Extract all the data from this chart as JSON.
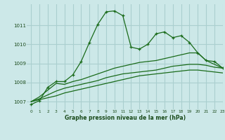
{
  "title": "Graphe pression niveau de la mer (hPa)",
  "bg_color": "#cce8e8",
  "grid_color": "#aacfcf",
  "line_color": "#1a6b1a",
  "xlim": [
    -0.5,
    23
  ],
  "ylim": [
    1006.6,
    1012.1
  ],
  "yticks": [
    1007,
    1008,
    1009,
    1010,
    1011
  ],
  "xticks": [
    0,
    1,
    2,
    3,
    4,
    5,
    6,
    7,
    8,
    9,
    10,
    11,
    12,
    13,
    14,
    15,
    16,
    17,
    18,
    19,
    20,
    21,
    22,
    23
  ],
  "series1_x": [
    0,
    1,
    2,
    3,
    4,
    5,
    6,
    7,
    8,
    9,
    10,
    11,
    12,
    13,
    14,
    15,
    16,
    17,
    18,
    19,
    20,
    21,
    22,
    23
  ],
  "series1_y": [
    1006.85,
    1007.05,
    1007.75,
    1008.05,
    1008.05,
    1008.4,
    1009.1,
    1010.1,
    1011.05,
    1011.7,
    1011.75,
    1011.5,
    1009.85,
    1009.75,
    1010.0,
    1010.55,
    1010.65,
    1010.35,
    1010.45,
    1010.1,
    1009.55,
    1009.15,
    1009.1,
    1008.75
  ],
  "series2_x": [
    0,
    1,
    2,
    3,
    4,
    5,
    6,
    7,
    8,
    9,
    10,
    11,
    12,
    13,
    14,
    15,
    16,
    17,
    18,
    19,
    20,
    21,
    22,
    23
  ],
  "series2_y": [
    1007.0,
    1007.25,
    1007.6,
    1007.95,
    1007.9,
    1008.05,
    1008.15,
    1008.3,
    1008.45,
    1008.6,
    1008.75,
    1008.85,
    1008.95,
    1009.05,
    1009.1,
    1009.15,
    1009.25,
    1009.35,
    1009.45,
    1009.55,
    1009.55,
    1009.15,
    1008.95,
    1008.75
  ],
  "series3_x": [
    0,
    1,
    2,
    3,
    4,
    5,
    6,
    7,
    8,
    9,
    10,
    11,
    12,
    13,
    14,
    15,
    16,
    17,
    18,
    19,
    20,
    21,
    22,
    23
  ],
  "series3_y": [
    1007.0,
    1007.15,
    1007.35,
    1007.55,
    1007.7,
    1007.8,
    1007.9,
    1008.0,
    1008.1,
    1008.25,
    1008.35,
    1008.45,
    1008.5,
    1008.55,
    1008.6,
    1008.65,
    1008.75,
    1008.85,
    1008.9,
    1008.95,
    1008.95,
    1008.9,
    1008.8,
    1008.75
  ],
  "series4_x": [
    0,
    1,
    2,
    3,
    4,
    5,
    6,
    7,
    8,
    9,
    10,
    11,
    12,
    13,
    14,
    15,
    16,
    17,
    18,
    19,
    20,
    21,
    22,
    23
  ],
  "series4_y": [
    1007.0,
    1007.1,
    1007.2,
    1007.3,
    1007.45,
    1007.55,
    1007.65,
    1007.75,
    1007.85,
    1007.95,
    1008.05,
    1008.15,
    1008.25,
    1008.35,
    1008.4,
    1008.45,
    1008.5,
    1008.55,
    1008.6,
    1008.65,
    1008.65,
    1008.6,
    1008.55,
    1008.5
  ]
}
